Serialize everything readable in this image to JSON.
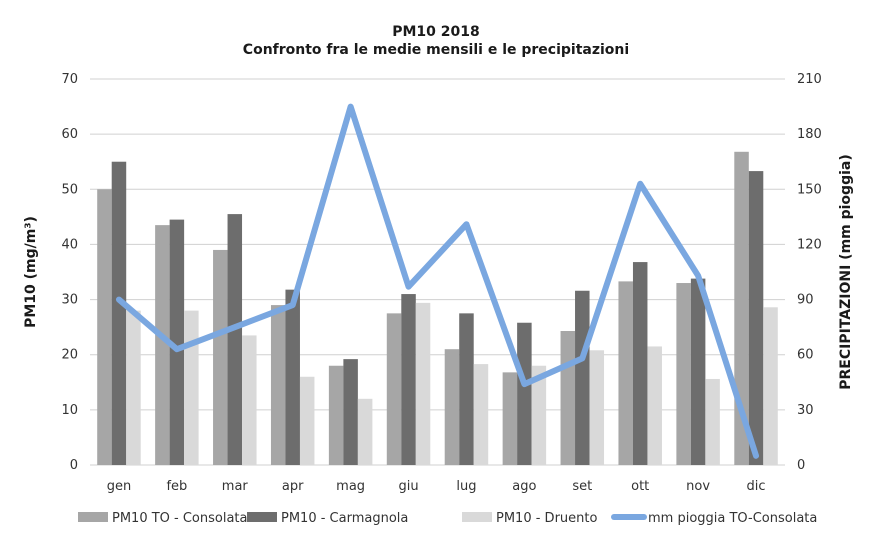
{
  "chart_data": {
    "type": "bar",
    "title": "PM10 2018",
    "subtitle": "Confronto fra le medie mensili e le precipitazioni",
    "ylabel": "PM10 (mg/m³)",
    "y2label": "PRECIPITAZIONI (mm pioggia)",
    "ylim": [
      0,
      70
    ],
    "y2lim": [
      0,
      210
    ],
    "yticks": [
      "0",
      "10",
      "20",
      "30",
      "40",
      "50",
      "60",
      "70"
    ],
    "y2ticks": [
      "0",
      "30",
      "60",
      "90",
      "120",
      "150",
      "180",
      "210"
    ],
    "grid": true,
    "legend_position": "bottom",
    "categories": [
      "gen",
      "feb",
      "mar",
      "apr",
      "mag",
      "giu",
      "lug",
      "ago",
      "set",
      "ott",
      "nov",
      "dic"
    ],
    "series": [
      {
        "name": "PM10 TO - Consolata",
        "type": "bar",
        "color": "#a6a6a6",
        "axis": "left",
        "values": [
          50,
          43.5,
          39,
          29,
          18,
          27.5,
          21,
          16.8,
          24.3,
          33.3,
          33,
          56.8
        ]
      },
      {
        "name": "PM10 - Carmagnola",
        "type": "bar",
        "color": "#6d6d6d",
        "axis": "left",
        "values": [
          55,
          44.5,
          45.5,
          31.8,
          19.2,
          31,
          27.5,
          25.8,
          31.6,
          36.8,
          33.8,
          53.3
        ]
      },
      {
        "name": "PM10 - Druento",
        "type": "bar",
        "color": "#d9d9d9",
        "axis": "left",
        "values": [
          28,
          28,
          23.5,
          16,
          12,
          29.4,
          18.3,
          18,
          20.8,
          21.5,
          15.6,
          28.6
        ]
      },
      {
        "name": "mm pioggia TO-Consolata",
        "type": "line",
        "color": "#7aa7e0",
        "axis": "right",
        "values": [
          90,
          63,
          75,
          87,
          195,
          97,
          131,
          44,
          58,
          153,
          103,
          5
        ]
      }
    ]
  }
}
